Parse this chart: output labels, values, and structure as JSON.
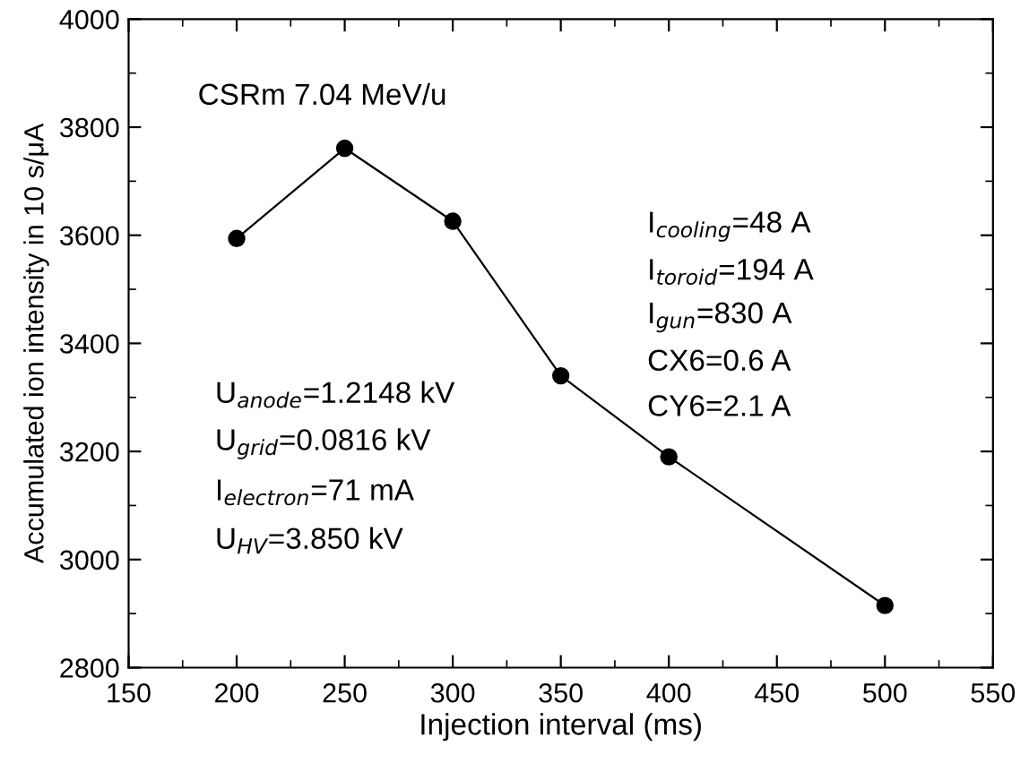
{
  "chart_data": {
    "type": "line",
    "xlabel": "Injection interval (ms)",
    "ylabel": "Accumulated ion intensity in 10 s/μA",
    "x": [
      200,
      250,
      300,
      350,
      400,
      500
    ],
    "series": [
      {
        "color": "#000000",
        "values": [
          3594,
          3761,
          3626,
          3340,
          3190,
          2915
        ]
      }
    ],
    "xlim": [
      150,
      550
    ],
    "xticks": [
      150,
      200,
      250,
      300,
      350,
      400,
      450,
      500,
      550
    ],
    "ylim": [
      2800,
      4000
    ],
    "yticks": [
      2800,
      3000,
      3200,
      3400,
      3600,
      3800,
      4000
    ],
    "marker": "circle",
    "line_style": "solid",
    "grid": false,
    "legend": false,
    "annotations": [
      "CSRm 7.04 MeV/u",
      "U$_{anode}$=1.2148 kV",
      "U$_{grid}$=0.0816 kV",
      "I$_{electron}$=71 mA",
      "U$_{HV}$=3.850 kV",
      "I$_{cooling}$=48 A",
      "I$_{toroid}$=194 A",
      "I$_{gun}$=830 A",
      "CX6=0.6 A",
      "CY6=2.1 A"
    ]
  }
}
